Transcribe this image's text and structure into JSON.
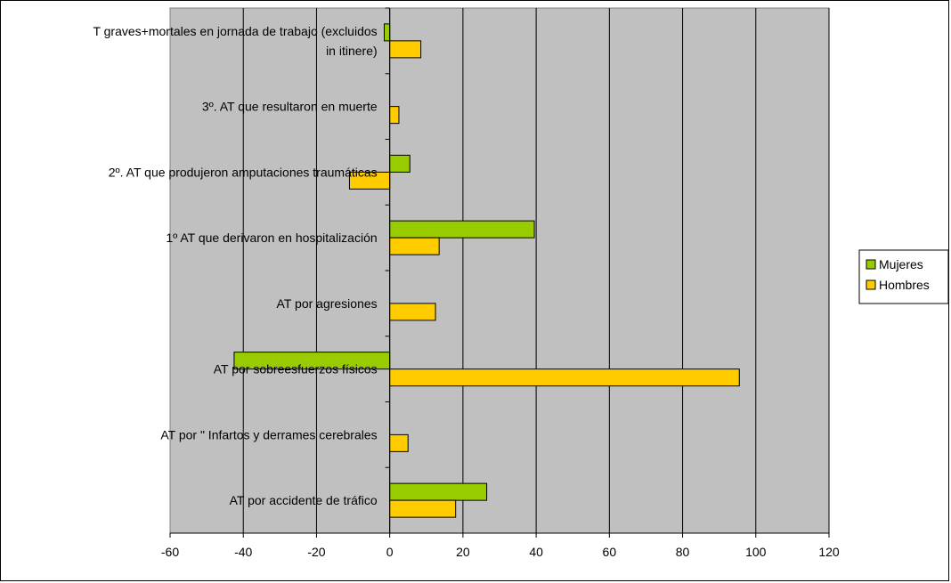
{
  "chart_data": {
    "type": "bar",
    "orientation": "horizontal",
    "categories": [
      "AT graves+mortales  en jornada de trabajo (excluidos in itinere)",
      "3º. AT que resultaron en muerte",
      "2º. AT que produjeron amputaciones traumáticas",
      "1º AT que derivaron en hospitalización",
      "AT por agresiones",
      "AT por sobreesfuerzos físicos",
      "AT por \" Infartos y derrames cerebrales",
      "AT por accidente de tráfico"
    ],
    "category_lines": [
      [
        "T graves+mortales  en jornada de trabajo (excluidos",
        "in itinere)"
      ],
      [
        "3º. AT que resultaron en muerte"
      ],
      [
        "2º. AT que produjeron amputaciones traumáticas"
      ],
      [
        "1º AT que derivaron en hospitalización"
      ],
      [
        "AT por agresiones"
      ],
      [
        "AT por sobreesfuerzos físicos"
      ],
      [
        "AT por \" Infartos y derrames cerebrales"
      ],
      [
        "AT por accidente de tráfico"
      ]
    ],
    "series": [
      {
        "name": "Mujeres",
        "color": "#99CC00",
        "values": [
          -1.5,
          0,
          5.5,
          39.5,
          0,
          -42.5,
          0,
          26.5
        ]
      },
      {
        "name": "Hombres",
        "color": "#FFCC00",
        "values": [
          8.5,
          2.5,
          -11,
          13.5,
          12.5,
          95.5,
          5,
          18
        ]
      }
    ],
    "xlim": [
      -60,
      120
    ],
    "xticks": [
      -60,
      -40,
      -20,
      0,
      20,
      40,
      60,
      80,
      100,
      120
    ],
    "grid": true,
    "plot_background": "#C0C0C0",
    "legend_position": "right"
  }
}
